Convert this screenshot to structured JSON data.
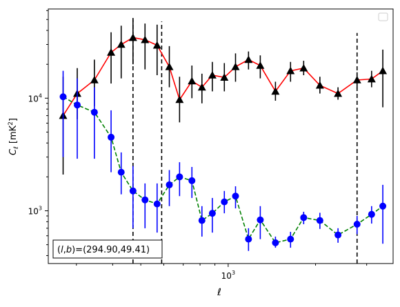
{
  "chart_data": {
    "type": "scatter",
    "title": "",
    "xlabel": "ℓ",
    "ylabel": "C_ℓ [mK²]",
    "xscale": "log",
    "yscale": "log",
    "xlim": [
      240,
      3700
    ],
    "ylim": [
      340,
      62000
    ],
    "x_tick_labels": [
      {
        "value": 1000,
        "base": "10",
        "exp": "3"
      }
    ],
    "y_tick_labels": [
      {
        "value": 1000,
        "base": "10",
        "exp": "3"
      },
      {
        "value": 10000,
        "base": "10",
        "exp": "4"
      }
    ],
    "grid": false,
    "legend": {
      "placement": "top-right",
      "entries": []
    },
    "annotation": "(l,b)=(294.90,49.41)",
    "vertical_lines_x": [
      470,
      590,
      2780
    ],
    "colors": {
      "series1_line": "#ff0000",
      "series1_marker": "#000000",
      "series2_line": "#008000",
      "series2_marker": "#0000ff"
    },
    "series": [
      {
        "line_style": "solid",
        "marker": "triangle",
        "points": [
          {
            "x": 270,
            "y": 7000,
            "lo": 2100,
            "hi": 15500
          },
          {
            "x": 302,
            "y": 11000,
            "lo": 6500,
            "hi": 18500
          },
          {
            "x": 346,
            "y": 14500,
            "lo": 8500,
            "hi": 22000
          },
          {
            "x": 395,
            "y": 25500,
            "lo": 13500,
            "hi": 38500
          },
          {
            "x": 428,
            "y": 30000,
            "lo": 15000,
            "hi": 44000
          },
          {
            "x": 470,
            "y": 34500,
            "lo": 20000,
            "hi": 50000
          },
          {
            "x": 517,
            "y": 33000,
            "lo": 18000,
            "hi": 46000
          },
          {
            "x": 569,
            "y": 29500,
            "lo": 16000,
            "hi": 45000
          },
          {
            "x": 627,
            "y": 19000,
            "lo": 12500,
            "hi": 29000
          },
          {
            "x": 680,
            "y": 9700,
            "lo": 6100,
            "hi": 15500
          },
          {
            "x": 750,
            "y": 14200,
            "lo": 10000,
            "hi": 19500
          },
          {
            "x": 812,
            "y": 12500,
            "lo": 9000,
            "hi": 16500
          },
          {
            "x": 882,
            "y": 16000,
            "lo": 11500,
            "hi": 21000
          },
          {
            "x": 970,
            "y": 15300,
            "lo": 11500,
            "hi": 20500
          },
          {
            "x": 1060,
            "y": 19000,
            "lo": 14000,
            "hi": 25000
          },
          {
            "x": 1175,
            "y": 22000,
            "lo": 18000,
            "hi": 26000
          },
          {
            "x": 1290,
            "y": 19500,
            "lo": 15000,
            "hi": 24000
          },
          {
            "x": 1455,
            "y": 11500,
            "lo": 9500,
            "hi": 14000
          },
          {
            "x": 1640,
            "y": 17500,
            "lo": 14000,
            "hi": 21000
          },
          {
            "x": 1820,
            "y": 18500,
            "lo": 16000,
            "hi": 21500
          },
          {
            "x": 2070,
            "y": 13000,
            "lo": 11000,
            "hi": 15500
          },
          {
            "x": 2390,
            "y": 11000,
            "lo": 9700,
            "hi": 12500
          },
          {
            "x": 2780,
            "y": 14500,
            "lo": 12000,
            "hi": 17000
          },
          {
            "x": 3120,
            "y": 14800,
            "lo": 12500,
            "hi": 17500
          },
          {
            "x": 3410,
            "y": 17500,
            "lo": 8300,
            "hi": 27000
          }
        ]
      },
      {
        "line_style": "dashed",
        "marker": "circle",
        "points": [
          {
            "x": 270,
            "y": 10300,
            "lo": 3000,
            "hi": 17500
          },
          {
            "x": 302,
            "y": 8700,
            "lo": 2900,
            "hi": 15000
          },
          {
            "x": 346,
            "y": 7500,
            "lo": 2900,
            "hi": 12500
          },
          {
            "x": 395,
            "y": 4500,
            "lo": 2200,
            "hi": 7800
          },
          {
            "x": 428,
            "y": 2200,
            "lo": 1400,
            "hi": 3300
          },
          {
            "x": 470,
            "y": 1500,
            "lo": 700,
            "hi": 2500
          },
          {
            "x": 517,
            "y": 1250,
            "lo": 700,
            "hi": 1750
          },
          {
            "x": 569,
            "y": 1150,
            "lo": 640,
            "hi": 1750
          },
          {
            "x": 627,
            "y": 1700,
            "lo": 1100,
            "hi": 2300
          },
          {
            "x": 680,
            "y": 2000,
            "lo": 1350,
            "hi": 2700
          },
          {
            "x": 750,
            "y": 1850,
            "lo": 1300,
            "hi": 2450
          },
          {
            "x": 812,
            "y": 820,
            "lo": 590,
            "hi": 1100
          },
          {
            "x": 882,
            "y": 950,
            "lo": 640,
            "hi": 1300
          },
          {
            "x": 970,
            "y": 1200,
            "lo": 950,
            "hi": 1500
          },
          {
            "x": 1060,
            "y": 1350,
            "lo": 1050,
            "hi": 1650
          },
          {
            "x": 1175,
            "y": 560,
            "lo": 440,
            "hi": 700
          },
          {
            "x": 1290,
            "y": 830,
            "lo": 560,
            "hi": 1100
          },
          {
            "x": 1455,
            "y": 520,
            "lo": 470,
            "hi": 590
          },
          {
            "x": 1640,
            "y": 560,
            "lo": 470,
            "hi": 650
          },
          {
            "x": 1820,
            "y": 870,
            "lo": 760,
            "hi": 980
          },
          {
            "x": 2070,
            "y": 820,
            "lo": 690,
            "hi": 960
          },
          {
            "x": 2390,
            "y": 610,
            "lo": 520,
            "hi": 700
          },
          {
            "x": 2780,
            "y": 760,
            "lo": 620,
            "hi": 900
          },
          {
            "x": 3120,
            "y": 930,
            "lo": 770,
            "hi": 1100
          },
          {
            "x": 3410,
            "y": 1100,
            "lo": 510,
            "hi": 1700
          }
        ]
      }
    ]
  }
}
